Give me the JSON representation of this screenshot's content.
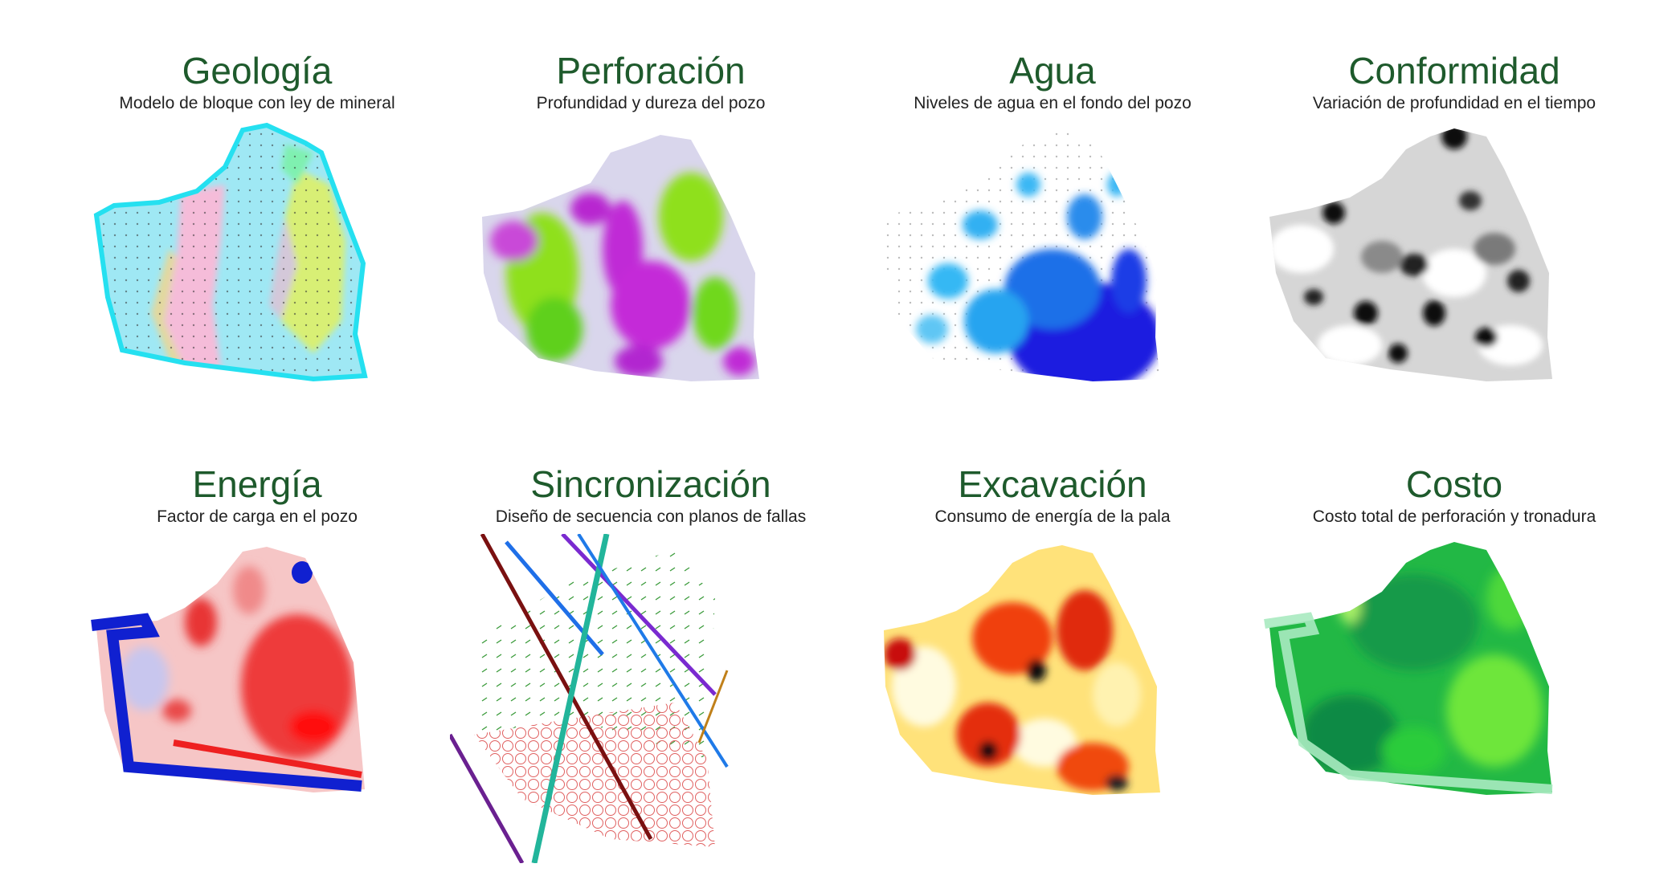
{
  "panels": [
    {
      "title": "Geología",
      "subtitle": "Modelo de bloque con ley de mineral",
      "map_icon": "geology-heatmap",
      "palette": [
        "#6fe3ee",
        "#f5b8d8",
        "#d8ef70"
      ]
    },
    {
      "title": "Perforación",
      "subtitle": "Profundidad y dureza del pozo",
      "map_icon": "drilling-heatmap",
      "palette": [
        "#d9d9ee",
        "#c026d3",
        "#8be01a"
      ]
    },
    {
      "title": "Agua",
      "subtitle": "Niveles de agua en el fondo del pozo",
      "map_icon": "water-heatmap",
      "palette": [
        "#ffffff",
        "#27a8f0",
        "#1010d8"
      ]
    },
    {
      "title": "Conformidad",
      "subtitle": "Variación de profundidad en el tiempo",
      "map_icon": "conformity-heatmap",
      "palette": [
        "#ffffff",
        "#9a9a9a",
        "#111111"
      ]
    },
    {
      "title": "Energía",
      "subtitle": "Factor de carga en el pozo",
      "map_icon": "energy-heatmap",
      "palette": [
        "#f7c9c9",
        "#ee3b3b",
        "#1020d0"
      ]
    },
    {
      "title": "Sincronización",
      "subtitle": "Diseño de secuencia con planos de fallas",
      "map_icon": "sequence-fault-diagram",
      "palette": [
        "#ffffff",
        "#e06060",
        "#22b59b"
      ]
    },
    {
      "title": "Excavación",
      "subtitle": "Consumo de energía de la pala",
      "map_icon": "excavation-heatmap",
      "palette": [
        "#fff7b0",
        "#f08a10",
        "#b40000"
      ]
    },
    {
      "title": "Costo",
      "subtitle": "Costo total de perforación y tronadura",
      "map_icon": "cost-heatmap",
      "palette": [
        "#2fbf5a",
        "#0f8f4a",
        "#9af06a"
      ]
    }
  ]
}
